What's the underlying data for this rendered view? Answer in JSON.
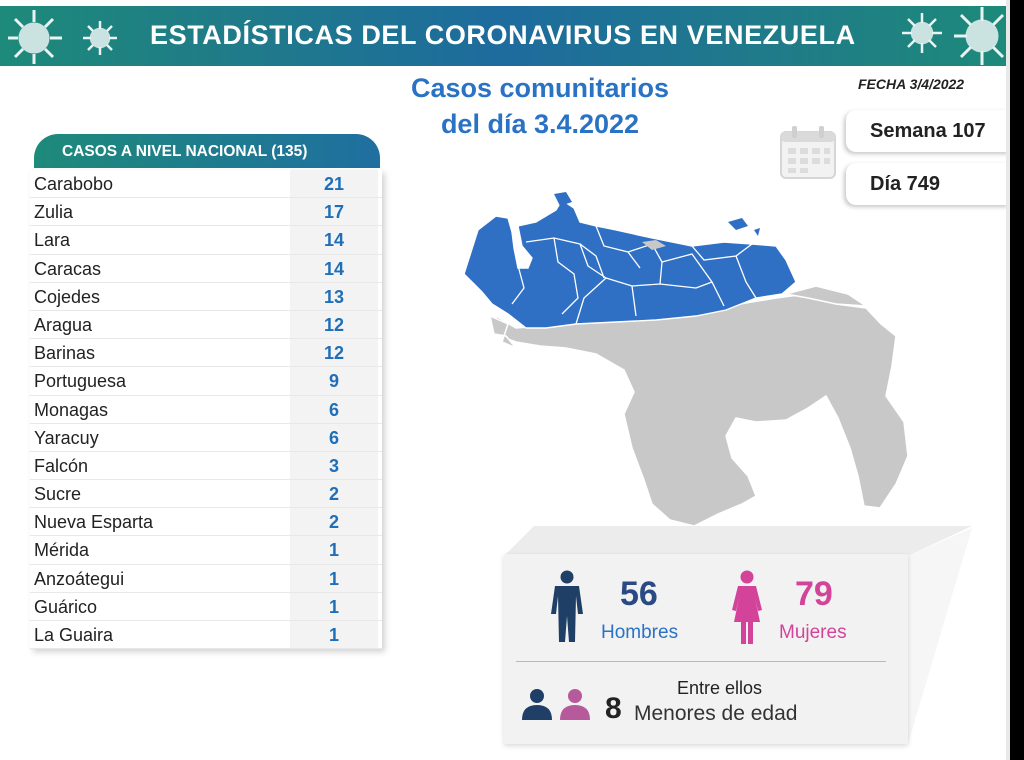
{
  "header": {
    "title": "ESTADÍSTICAS DEL CORONAVIRUS EN VENEZUELA"
  },
  "subtitle": {
    "line1": "Casos comunitarios",
    "line2": "del día 3.4.2022"
  },
  "fecha": "FECHA 3/4/2022",
  "semana": "Semana 107",
  "dia": "Día 749",
  "table": {
    "title": "CASOS A NIVEL NACIONAL  (135)",
    "rows": [
      {
        "state": "Carabobo",
        "cases": "21"
      },
      {
        "state": "Zulia",
        "cases": "17"
      },
      {
        "state": "Lara",
        "cases": "14"
      },
      {
        "state": "Caracas",
        "cases": "14"
      },
      {
        "state": "Cojedes",
        "cases": "13"
      },
      {
        "state": "Aragua",
        "cases": "12"
      },
      {
        "state": "Barinas",
        "cases": "12"
      },
      {
        "state": "Portuguesa",
        "cases": "9"
      },
      {
        "state": "Monagas",
        "cases": "6"
      },
      {
        "state": "Yaracuy",
        "cases": "6"
      },
      {
        "state": "Falcón",
        "cases": "3"
      },
      {
        "state": "Sucre",
        "cases": "2"
      },
      {
        "state": "Nueva Esparta",
        "cases": "2"
      },
      {
        "state": "Mérida",
        "cases": "1"
      },
      {
        "state": "Anzoátegui",
        "cases": "1"
      },
      {
        "state": "Guárico",
        "cases": "1"
      },
      {
        "state": "La Guaira",
        "cases": "1"
      }
    ]
  },
  "gender": {
    "men_count": "56",
    "men_label": "Hombres",
    "women_count": "79",
    "women_label": "Mujeres",
    "among_label": "Entre ellos",
    "minors_count": "8",
    "minors_label": "Menores de edad"
  },
  "colors": {
    "header_start": "#1e8a7a",
    "header_end": "#1e6b9e",
    "accent_blue": "#2a72c4",
    "map_affected": "#2f6fc4",
    "map_other": "#c8c8c8",
    "men": "#1f3f66",
    "women": "#d3439a"
  },
  "icons": [
    "virus-icon",
    "calendar-icon",
    "man-icon",
    "woman-icon",
    "child-icon"
  ]
}
